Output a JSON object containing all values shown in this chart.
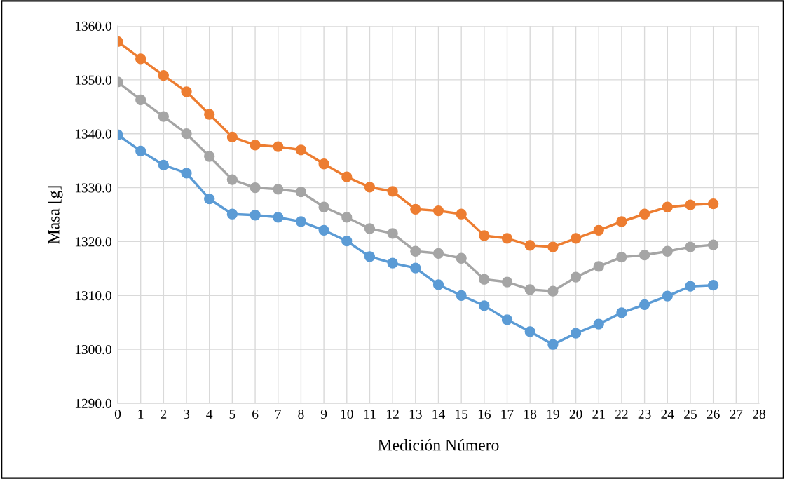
{
  "chart_data": {
    "type": "line",
    "xlabel": "Medición Número",
    "ylabel": "Masa [g]",
    "x": [
      0,
      1,
      2,
      3,
      4,
      5,
      6,
      7,
      8,
      9,
      10,
      11,
      12,
      13,
      14,
      15,
      16,
      17,
      18,
      19,
      20,
      21,
      22,
      23,
      24,
      25,
      26
    ],
    "xlim": [
      0,
      28
    ],
    "xticks": [
      0,
      1,
      2,
      3,
      4,
      5,
      6,
      7,
      8,
      9,
      10,
      11,
      12,
      13,
      14,
      15,
      16,
      17,
      18,
      19,
      20,
      21,
      22,
      23,
      24,
      25,
      26,
      27,
      28
    ],
    "ylim": [
      1290,
      1360
    ],
    "yticks": [
      {
        "value": 1290,
        "label": "1290.0"
      },
      {
        "value": 1300,
        "label": "1300.0"
      },
      {
        "value": 1310,
        "label": "1310.0"
      },
      {
        "value": 1320,
        "label": "1320.0"
      },
      {
        "value": 1330,
        "label": "1330.0"
      },
      {
        "value": 1340,
        "label": "1340.0"
      },
      {
        "value": 1350,
        "label": "1350.0"
      },
      {
        "value": 1360,
        "label": "1360.0"
      }
    ],
    "grid": true,
    "marker": "circle",
    "line_style": "solid",
    "series": [
      {
        "color": "#ed7d31",
        "values": [
          1357.1,
          1353.9,
          1350.8,
          1347.8,
          1343.6,
          1339.4,
          1337.9,
          1337.6,
          1337.0,
          1334.4,
          1332.0,
          1330.1,
          1329.3,
          1326.0,
          1325.7,
          1325.1,
          1321.1,
          1320.6,
          1319.3,
          1319.0,
          1320.6,
          1322.1,
          1323.7,
          1325.1,
          1326.4,
          1326.8,
          1327.0
        ]
      },
      {
        "color": "#a5a5a5",
        "values": [
          1349.6,
          1346.3,
          1343.2,
          1340.0,
          1335.8,
          1331.5,
          1330.0,
          1329.7,
          1329.2,
          1326.4,
          1324.5,
          1322.4,
          1321.5,
          1318.2,
          1317.8,
          1316.9,
          1313.0,
          1312.5,
          1311.1,
          1310.8,
          1313.4,
          1315.4,
          1317.1,
          1317.5,
          1318.2,
          1319.0,
          1319.4
        ]
      },
      {
        "color": "#5b9bd5",
        "values": [
          1339.8,
          1336.8,
          1334.2,
          1332.7,
          1327.9,
          1325.1,
          1324.9,
          1324.5,
          1323.7,
          1322.1,
          1320.1,
          1317.2,
          1316.0,
          1315.1,
          1312.0,
          1310.0,
          1308.1,
          1305.5,
          1303.3,
          1300.9,
          1303.0,
          1304.7,
          1306.8,
          1308.3,
          1309.9,
          1311.7,
          1311.9
        ]
      }
    ]
  }
}
